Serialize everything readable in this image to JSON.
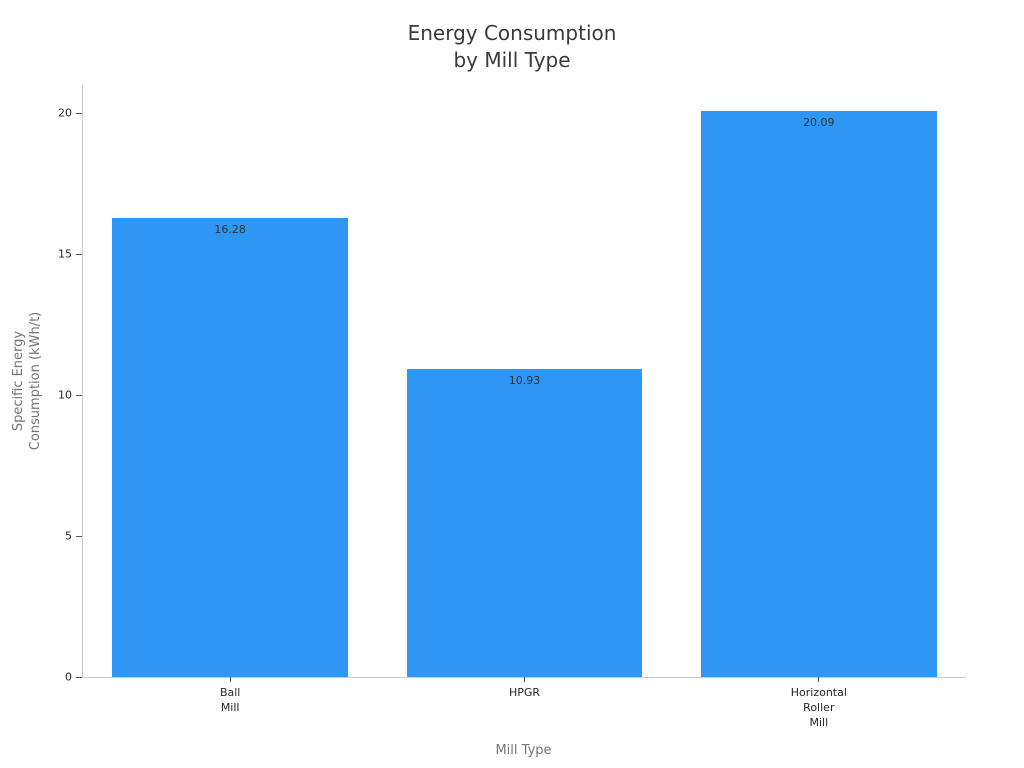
{
  "chart_data": {
    "type": "bar",
    "title": "Energy Consumption\nby Mill Type",
    "xlabel": "Mill Type",
    "ylabel": "Specific Energy\nConsumption (kWh/t)",
    "categories": [
      "Ball\nMill",
      "HPGR",
      "Horizontal\nRoller\nMill"
    ],
    "values": [
      16.28,
      10.93,
      20.09
    ],
    "value_labels": [
      "16.28",
      "10.93",
      "20.09"
    ],
    "yticks": [
      0,
      5,
      10,
      15,
      20
    ],
    "ylim": [
      0,
      21
    ],
    "bar_width_fraction": 0.8,
    "grid": false,
    "legend": "none",
    "colors": {
      "bar": "#2E96F5",
      "title_text": "#3a3a3a",
      "tick_text": "#262626",
      "axis_label_text": "#757575",
      "value_label_text": "#333333",
      "spine": "#cccccc",
      "tick_mark": "#555555",
      "background": "#ffffff"
    }
  }
}
